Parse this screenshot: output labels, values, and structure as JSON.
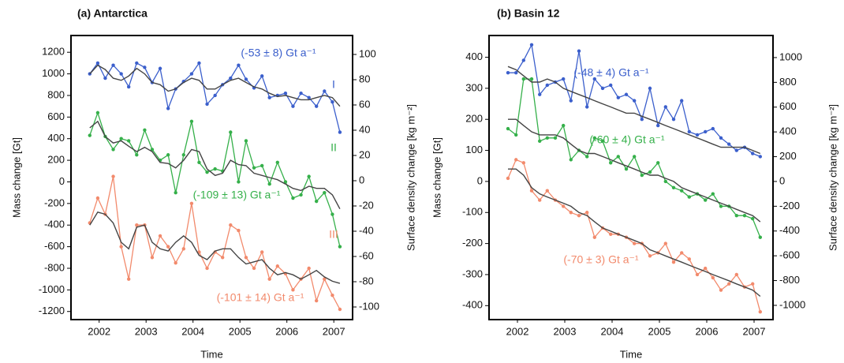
{
  "chart_data": [
    {
      "type": "line",
      "title": "(a) Antarctica",
      "x_label": "Time",
      "y_label": "Mass change  [Gt]",
      "y2_label": "Surface density change  [kg m⁻²]",
      "x": [
        2002.3,
        2002.47,
        2002.63,
        2002.8,
        2002.97,
        2003.13,
        2003.3,
        2003.47,
        2003.63,
        2003.8,
        2003.97,
        2004.13,
        2004.3,
        2004.47,
        2004.63,
        2004.8,
        2004.97,
        2005.13,
        2005.3,
        2005.47,
        2005.63,
        2005.8,
        2005.97,
        2006.13,
        2006.3,
        2006.47,
        2006.63,
        2006.8,
        2006.97,
        2007.13,
        2007.3,
        2007.47,
        2007.63
      ],
      "xlim": [
        2001.9,
        2007.9
      ],
      "xticks": [
        {
          "value": 2002.5,
          "label": "2002"
        },
        {
          "value": 2003.5,
          "label": "2003"
        },
        {
          "value": 2004.5,
          "label": "2004"
        },
        {
          "value": 2005.5,
          "label": "2005"
        },
        {
          "value": 2006.5,
          "label": "2006"
        },
        {
          "value": 2007.5,
          "label": "2007"
        }
      ],
      "ylim": [
        -1275,
        1355
      ],
      "yticks": [
        -1200,
        -1000,
        -800,
        -600,
        -400,
        -200,
        0,
        200,
        400,
        600,
        800,
        1000,
        1200
      ],
      "y2lim": [
        -110,
        115
      ],
      "y2ticks": [
        -100,
        -80,
        -60,
        -40,
        -20,
        0,
        20,
        40,
        60,
        80,
        100
      ],
      "series": [
        {
          "color": "#3b5fcc",
          "markers": true,
          "values": [
            1000,
            1100,
            960,
            1080,
            1000,
            880,
            1100,
            1060,
            920,
            1050,
            680,
            860,
            930,
            1000,
            1100,
            720,
            800,
            900,
            960,
            1080,
            950,
            870,
            980,
            780,
            800,
            820,
            700,
            820,
            780,
            700,
            840,
            740,
            460
          ]
        },
        {
          "color": "#35b04a",
          "markers": true,
          "values": [
            430,
            640,
            420,
            300,
            400,
            380,
            250,
            480,
            300,
            200,
            250,
            -100,
            250,
            560,
            180,
            90,
            120,
            100,
            460,
            0,
            380,
            130,
            150,
            -20,
            180,
            0,
            -150,
            -120,
            50,
            -180,
            -100,
            -300,
            -600
          ]
        },
        {
          "color": "#f28a6c",
          "markers": true,
          "values": [
            -380,
            -150,
            -300,
            50,
            -600,
            -900,
            -400,
            -400,
            -700,
            -500,
            -600,
            -750,
            -620,
            -200,
            -650,
            -800,
            -650,
            -700,
            -400,
            -450,
            -700,
            -800,
            -650,
            -900,
            -780,
            -850,
            -1000,
            -900,
            -800,
            -1100,
            -900,
            -1050,
            -1180
          ]
        },
        {
          "color": "#444444",
          "markers": false,
          "values": [
            1000,
            1080,
            1040,
            960,
            940,
            980,
            1050,
            1000,
            920,
            900,
            840,
            860,
            920,
            960,
            940,
            860,
            860,
            900,
            940,
            960,
            920,
            880,
            860,
            820,
            790,
            800,
            780,
            760,
            760,
            780,
            800,
            780,
            700
          ]
        },
        {
          "color": "#444444",
          "markers": false,
          "values": [
            500,
            560,
            420,
            360,
            380,
            330,
            280,
            320,
            280,
            180,
            170,
            130,
            200,
            300,
            280,
            120,
            60,
            80,
            200,
            160,
            150,
            80,
            60,
            40,
            20,
            -20,
            -60,
            -80,
            -40,
            -60,
            -60,
            -120,
            -250
          ]
        },
        {
          "color": "#444444",
          "markers": false,
          "values": [
            -400,
            -280,
            -300,
            -380,
            -560,
            -620,
            -420,
            -400,
            -560,
            -620,
            -640,
            -560,
            -500,
            -560,
            -680,
            -720,
            -640,
            -620,
            -620,
            -700,
            -760,
            -740,
            -720,
            -800,
            -860,
            -840,
            -860,
            -900,
            -860,
            -820,
            -880,
            -920,
            -940
          ]
        }
      ],
      "annotations": [
        {
          "text": "(-53 ± 8) Gt a⁻¹",
          "color": "#3b5fcc"
        },
        {
          "text": "I",
          "color": "#3b5fcc"
        },
        {
          "text": "II",
          "color": "#35b04a"
        },
        {
          "text": "(-109 ± 13) Gt a⁻¹",
          "color": "#35b04a"
        },
        {
          "text": "III",
          "color": "#f28a6c"
        },
        {
          "text": "(-101 ± 14) Gt a⁻¹",
          "color": "#f28a6c"
        }
      ]
    },
    {
      "type": "line",
      "title": "(b) Basin 12",
      "x_label": "Time",
      "y_label": "Mass change  [Gt]",
      "y2_label": "Surface density change  [kg m⁻²]",
      "x": [
        2002.3,
        2002.47,
        2002.63,
        2002.8,
        2002.97,
        2003.13,
        2003.3,
        2003.47,
        2003.63,
        2003.8,
        2003.97,
        2004.13,
        2004.3,
        2004.47,
        2004.63,
        2004.8,
        2004.97,
        2005.13,
        2005.3,
        2005.47,
        2005.63,
        2005.8,
        2005.97,
        2006.13,
        2006.3,
        2006.47,
        2006.63,
        2006.8,
        2006.97,
        2007.13,
        2007.3,
        2007.47,
        2007.63
      ],
      "xlim": [
        2001.9,
        2007.9
      ],
      "xticks": [
        {
          "value": 2002.5,
          "label": "2002"
        },
        {
          "value": 2003.5,
          "label": "2003"
        },
        {
          "value": 2004.5,
          "label": "2004"
        },
        {
          "value": 2005.5,
          "label": "2005"
        },
        {
          "value": 2006.5,
          "label": "2006"
        },
        {
          "value": 2007.5,
          "label": "2007"
        }
      ],
      "ylim": [
        -445,
        470
      ],
      "yticks": [
        -400,
        -300,
        -200,
        -100,
        0,
        100,
        200,
        300,
        400
      ],
      "y2lim": [
        -1115,
        1178
      ],
      "y2ticks": [
        -1000,
        -800,
        -600,
        -400,
        -200,
        0,
        200,
        400,
        600,
        800,
        1000
      ],
      "series": [
        {
          "color": "#3b5fcc",
          "markers": true,
          "values": [
            350,
            350,
            390,
            440,
            280,
            310,
            320,
            330,
            260,
            420,
            240,
            330,
            300,
            310,
            270,
            280,
            260,
            200,
            300,
            180,
            240,
            200,
            260,
            160,
            150,
            160,
            170,
            140,
            120,
            100,
            110,
            90,
            80
          ]
        },
        {
          "color": "#35b04a",
          "markers": true,
          "values": [
            170,
            150,
            330,
            330,
            130,
            140,
            140,
            180,
            70,
            100,
            80,
            140,
            130,
            60,
            80,
            40,
            80,
            20,
            30,
            60,
            0,
            -20,
            -30,
            -50,
            -40,
            -60,
            -40,
            -80,
            -80,
            -110,
            -110,
            -120,
            -180
          ]
        },
        {
          "color": "#f28a6c",
          "markers": true,
          "values": [
            10,
            70,
            60,
            -30,
            -60,
            -30,
            -60,
            -80,
            -100,
            -110,
            -100,
            -180,
            -150,
            -170,
            -170,
            -180,
            -200,
            -200,
            -240,
            -230,
            -200,
            -260,
            -230,
            -250,
            -300,
            -280,
            -310,
            -350,
            -330,
            -300,
            -340,
            -330,
            -420
          ]
        },
        {
          "color": "#444444",
          "markers": false,
          "values": [
            370,
            360,
            340,
            320,
            320,
            330,
            320,
            300,
            290,
            280,
            270,
            260,
            250,
            240,
            230,
            220,
            220,
            210,
            200,
            190,
            180,
            170,
            160,
            150,
            140,
            130,
            120,
            110,
            110,
            110,
            110,
            100,
            90
          ]
        },
        {
          "color": "#444444",
          "markers": false,
          "values": [
            200,
            200,
            180,
            160,
            150,
            150,
            150,
            140,
            120,
            100,
            90,
            90,
            80,
            70,
            60,
            50,
            40,
            30,
            20,
            20,
            10,
            0,
            -20,
            -30,
            -40,
            -50,
            -60,
            -70,
            -80,
            -90,
            -100,
            -110,
            -130
          ]
        },
        {
          "color": "#444444",
          "markers": false,
          "values": [
            40,
            40,
            20,
            -20,
            -40,
            -50,
            -60,
            -70,
            -80,
            -100,
            -110,
            -130,
            -150,
            -160,
            -170,
            -180,
            -190,
            -200,
            -220,
            -230,
            -240,
            -250,
            -260,
            -270,
            -280,
            -290,
            -300,
            -310,
            -320,
            -330,
            -340,
            -350,
            -370
          ]
        }
      ],
      "annotations": [
        {
          "text": "(-48 ± 4) Gt a⁻¹",
          "color": "#3b5fcc"
        },
        {
          "text": "(-60 ± 4) Gt a⁻¹",
          "color": "#35b04a"
        },
        {
          "text": "(-70 ± 3) Gt a⁻¹",
          "color": "#f28a6c"
        }
      ]
    }
  ]
}
